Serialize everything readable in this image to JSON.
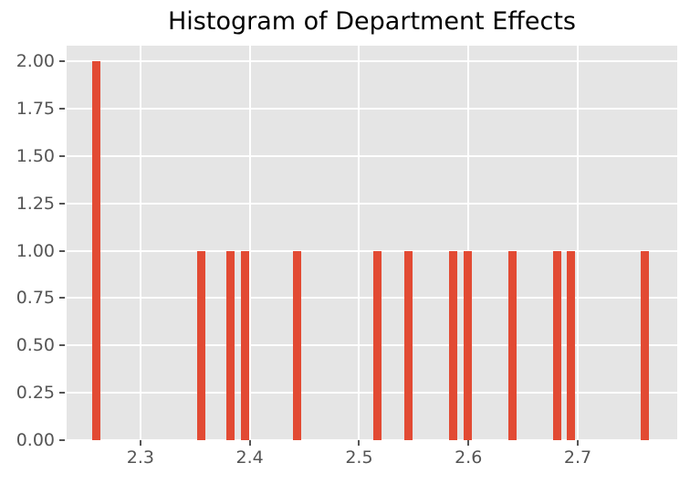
{
  "title": "Histogram of Department Effects",
  "colors": {
    "bar": "#E24A33",
    "plot_background": "#E5E5E5",
    "grid": "#FFFFFF",
    "tick_label": "#555555",
    "title": "#000000",
    "page_background": "#FFFFFF"
  },
  "chart_data": {
    "type": "bar",
    "title": "Histogram of Department Effects",
    "xlabel": "",
    "ylabel": "",
    "grid": "on",
    "legend": "none",
    "xlim": [
      2.2325,
      2.791
    ],
    "ylim": [
      0,
      2.082
    ],
    "bar_width_units": 0.0073,
    "x": [
      2.26,
      2.356,
      2.382,
      2.396,
      2.443,
      2.517,
      2.545,
      2.586,
      2.599,
      2.64,
      2.681,
      2.694,
      2.761
    ],
    "values": [
      2,
      1,
      1,
      1,
      1,
      1,
      1,
      1,
      1,
      1,
      1,
      1,
      1
    ],
    "xticks": {
      "values": [
        2.3,
        2.4,
        2.5,
        2.6,
        2.7
      ],
      "labels": [
        "2.3",
        "2.4",
        "2.5",
        "2.6",
        "2.7"
      ]
    },
    "yticks": {
      "values": [
        0.0,
        0.25,
        0.5,
        0.75,
        1.0,
        1.25,
        1.5,
        1.75,
        2.0
      ],
      "labels": [
        "0.00",
        "0.25",
        "0.50",
        "0.75",
        "1.00",
        "1.25",
        "1.50",
        "1.75",
        "2.00"
      ]
    }
  }
}
